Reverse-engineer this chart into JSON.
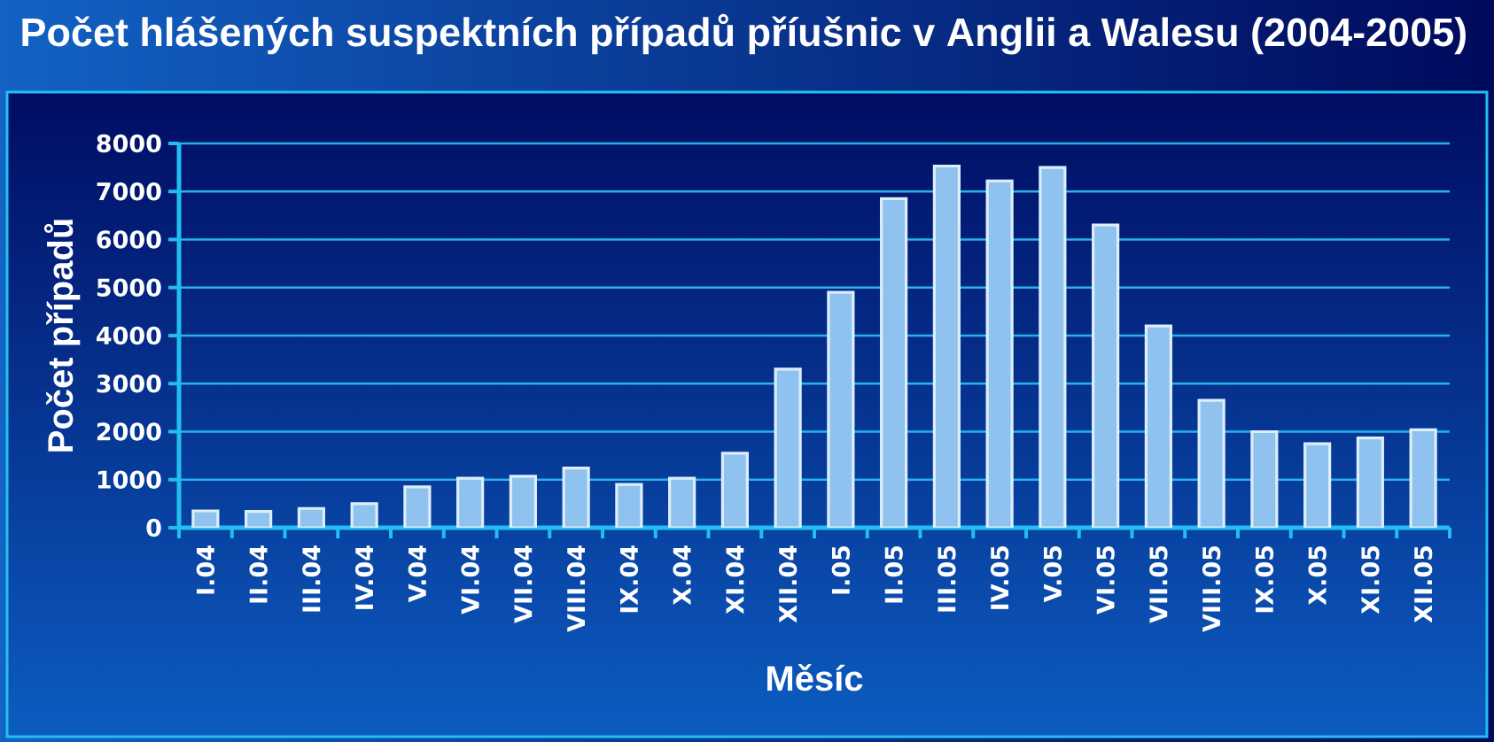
{
  "chart_data": {
    "type": "bar",
    "title": "Počet hlášených suspektních případů příušnic v Anglii a Walesu (2004-2005)",
    "xlabel": "Měsíc",
    "ylabel": "Počet případů",
    "categories": [
      "I.04",
      "II.04",
      "III.04",
      "IV.04",
      "V.04",
      "VI.04",
      "VII.04",
      "VIII.04",
      "IX.04",
      "X.04",
      "XI.04",
      "XII.04",
      "I.05",
      "II.05",
      "III.05",
      "IV.05",
      "V.05",
      "VI.05",
      "VII.05",
      "VIII.05",
      "IX.05",
      "X.05",
      "XI.05",
      "XII.05"
    ],
    "values": [
      350,
      340,
      400,
      500,
      850,
      1030,
      1070,
      1240,
      900,
      1030,
      1550,
      3300,
      4900,
      6850,
      7530,
      7220,
      7500,
      6300,
      4200,
      2650,
      2000,
      1750,
      1870,
      2040
    ],
    "color": "#8fc2ee",
    "ylim": [
      0,
      8000
    ],
    "yticks": [
      0,
      1000,
      2000,
      3000,
      4000,
      5000,
      6000,
      7000,
      8000
    ],
    "grid": "y"
  }
}
